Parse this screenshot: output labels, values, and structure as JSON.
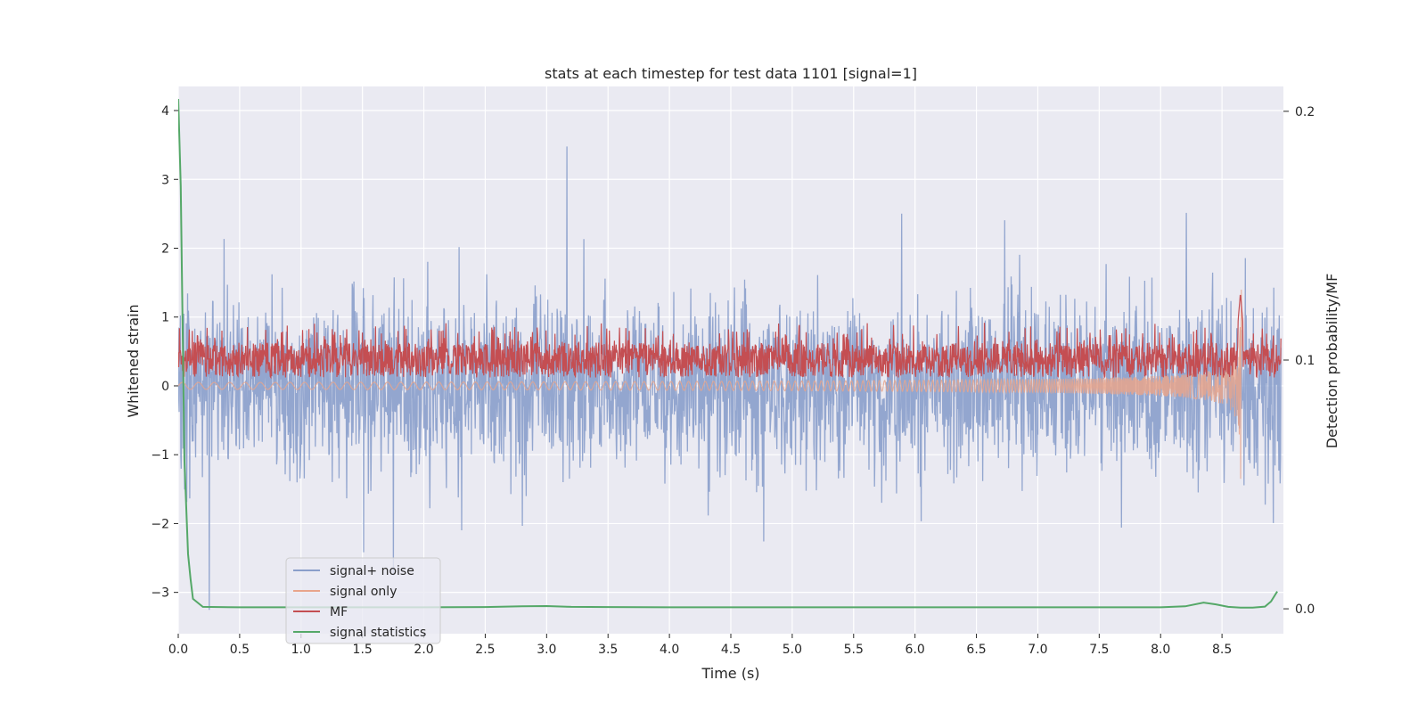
{
  "chart_data": {
    "type": "line",
    "title": "stats at each timestep for test data 1101 [signal=1]",
    "xlabel": "Time (s)",
    "ylabel": "Whitened strain",
    "ylabel_right": "Detection probability/MF",
    "xlim": [
      0.0,
      9.0
    ],
    "ylim": [
      -3.6,
      4.35
    ],
    "ylim_right": [
      -0.01,
      0.21
    ],
    "x_ticks": [
      0.0,
      0.5,
      1.0,
      1.5,
      2.0,
      2.5,
      3.0,
      3.5,
      4.0,
      4.5,
      5.0,
      5.5,
      6.0,
      6.5,
      7.0,
      7.5,
      8.0,
      8.5
    ],
    "x_tick_labels": [
      "0.0",
      "0.5",
      "1.0",
      "1.5",
      "2.0",
      "2.5",
      "3.0",
      "3.5",
      "4.0",
      "4.5",
      "5.0",
      "5.5",
      "6.0",
      "6.5",
      "7.0",
      "7.5",
      "8.0",
      "8.5"
    ],
    "y_ticks": [
      -3,
      -2,
      -1,
      0,
      1,
      2,
      3,
      4
    ],
    "y_tick_labels": [
      "−3",
      "−2",
      "−1",
      "0",
      "1",
      "2",
      "3",
      "4"
    ],
    "y_ticks_right": [
      0.0,
      0.1,
      0.2
    ],
    "y_tick_labels_right": [
      "0.0",
      "0.1",
      "0.2"
    ],
    "grid": true,
    "legend_position": "lower-left",
    "series": [
      {
        "name": "signal+ noise",
        "color": "#8a9fcb",
        "axis": "left",
        "description_stats": {
          "min": -3.3,
          "max": 4.0,
          "typical_low": -1.6,
          "typical_high": 1.5
        }
      },
      {
        "name": "signal only",
        "color": "#e8a58c",
        "axis": "left",
        "chirp": {
          "start_amp": 0.05,
          "peak_amp": 1.8,
          "peak_time": 8.65,
          "end_time": 8.66
        }
      },
      {
        "name": "MF",
        "color": "#c44e52",
        "axis": "right",
        "description_stats": {
          "baseline": 0.1,
          "band_low": 0.093,
          "band_high": 0.107,
          "peak": 0.127,
          "peak_time": 8.65
        }
      },
      {
        "name": "signal statistics",
        "color": "#55a868",
        "axis": "right",
        "x": [
          0.0,
          0.02,
          0.05,
          0.08,
          0.1,
          0.12,
          0.2,
          0.5,
          1.0,
          2.0,
          2.5,
          2.8,
          3.0,
          3.2,
          3.5,
          4.0,
          5.0,
          6.0,
          7.0,
          7.5,
          8.0,
          8.2,
          8.35,
          8.45,
          8.55,
          8.65,
          8.75,
          8.85,
          8.9,
          8.95
        ],
        "y": [
          0.205,
          0.17,
          0.06,
          0.022,
          0.012,
          0.004,
          0.0008,
          0.0006,
          0.0006,
          0.0006,
          0.0007,
          0.001,
          0.0011,
          0.0008,
          0.0007,
          0.0006,
          0.0006,
          0.0006,
          0.0006,
          0.0006,
          0.0006,
          0.001,
          0.0025,
          0.0018,
          0.0008,
          0.0005,
          0.0005,
          0.0009,
          0.003,
          0.007
        ]
      }
    ]
  }
}
